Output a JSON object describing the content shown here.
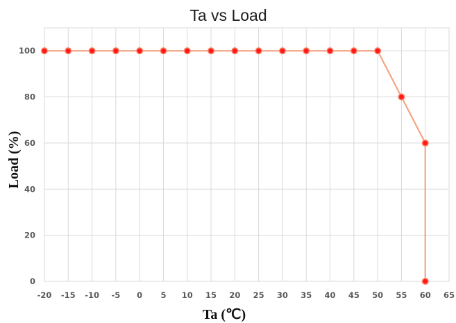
{
  "chart_data": {
    "type": "line",
    "title": "Ta vs Load",
    "xlabel": "Ta (℃)",
    "ylabel": "Load (%)",
    "xlim": [
      -20,
      65
    ],
    "ylim": [
      0,
      110
    ],
    "x_ticks": [
      -20,
      -15,
      -10,
      -5,
      0,
      5,
      10,
      15,
      20,
      25,
      30,
      35,
      40,
      45,
      50,
      55,
      60,
      65
    ],
    "y_ticks": [
      0,
      20,
      40,
      60,
      80,
      100
    ],
    "grid": true,
    "legend": "none",
    "series": [
      {
        "x": [
          -20,
          -15,
          -10,
          -5,
          0,
          5,
          10,
          15,
          20,
          25,
          30,
          35,
          40,
          45,
          50,
          55,
          60,
          60
        ],
        "y": [
          100,
          100,
          100,
          100,
          100,
          100,
          100,
          100,
          100,
          100,
          100,
          100,
          100,
          100,
          100,
          80,
          60,
          0
        ]
      }
    ],
    "colors": {
      "line": "#f4a582",
      "marker_fill": "#ff1a1a",
      "marker_edge": "#ff7f66"
    }
  }
}
